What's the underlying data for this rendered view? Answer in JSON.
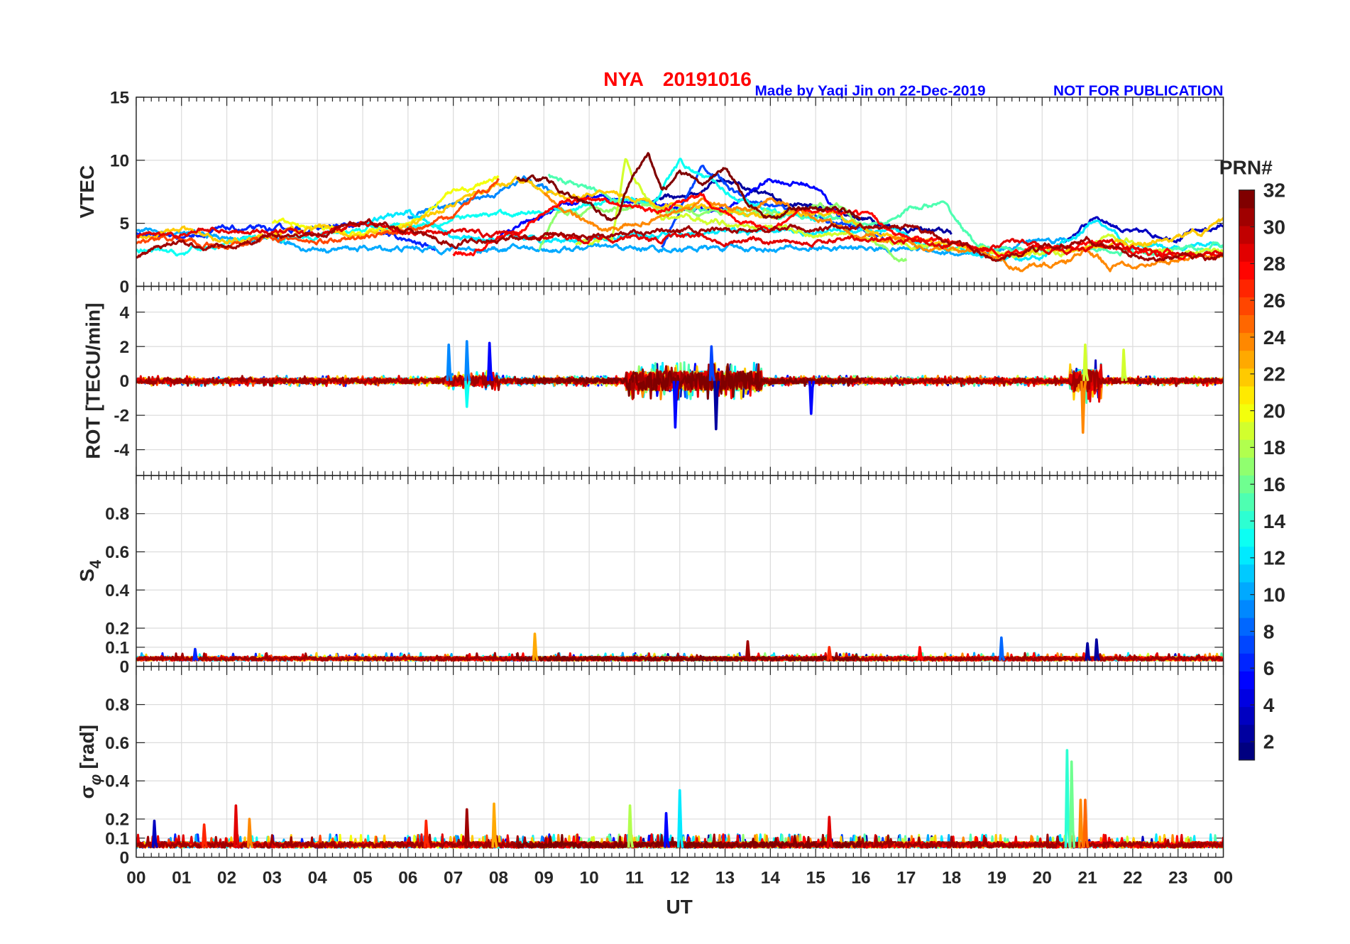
{
  "chart_data": {
    "type": "line",
    "title": {
      "station": "NYA",
      "date": "20191016"
    },
    "credit": "Made by Yaqi Jin on 22-Dec-2019",
    "notice": "NOT FOR PUBLICATION",
    "xlabel": "UT",
    "xlim": [
      0,
      24
    ],
    "xticks": [
      "00",
      "01",
      "02",
      "03",
      "04",
      "05",
      "06",
      "07",
      "08",
      "09",
      "10",
      "11",
      "12",
      "13",
      "14",
      "15",
      "16",
      "17",
      "18",
      "19",
      "20",
      "21",
      "22",
      "23",
      "00"
    ],
    "colorbar": {
      "label": "PRN#",
      "range": [
        1,
        32
      ],
      "ticks": [
        "2",
        "4",
        "6",
        "8",
        "10",
        "12",
        "14",
        "16",
        "18",
        "20",
        "22",
        "24",
        "26",
        "28",
        "30",
        "32"
      ],
      "colormap": "jet"
    },
    "panels": [
      {
        "id": "vtec",
        "ylabel": "VTEC",
        "ylim": [
          0,
          15
        ],
        "yticks": [
          0,
          5,
          10,
          15
        ],
        "yticklabels": [
          "0",
          "5",
          "10",
          "15"
        ]
      },
      {
        "id": "rot",
        "ylabel": "ROT [TECU/min]",
        "ylim": [
          -5.5,
          5.5
        ],
        "yticks": [
          -4,
          -2,
          0,
          2,
          4
        ],
        "yticklabels": [
          "-4",
          "-2",
          "0",
          "2",
          "4"
        ]
      },
      {
        "id": "s4",
        "ylabel": "S",
        "ylabel_sub": "4",
        "ylim": [
          0,
          1
        ],
        "yticks": [
          0,
          0.1,
          0.2,
          0.4,
          0.6,
          0.8
        ],
        "yticklabels": [
          "0",
          "0.1",
          "0.2",
          "0.4",
          "0.6",
          "0.8"
        ]
      },
      {
        "id": "sigma",
        "ylabel": "σ",
        "ylabel_sub": "φ",
        "ylabel_unit": "[rad]",
        "ylim": [
          0,
          1
        ],
        "yticks": [
          0,
          0.1,
          0.2,
          0.4,
          0.6,
          0.8
        ],
        "yticklabels": [
          "0",
          "0.1",
          "0.2",
          "0.4",
          "0.6",
          "0.8"
        ]
      }
    ],
    "vtec_tracks": [
      {
        "prn": 2,
        "t": [
          11.0,
          12.0,
          13.0,
          14.0,
          15.0,
          16.0,
          17.0,
          18.0
        ],
        "v": [
          6.8,
          7.0,
          8.6,
          7.0,
          6.2,
          5.5,
          4.6,
          4.2
        ]
      },
      {
        "prn": 3,
        "t": [
          20.5,
          21.2,
          22.0,
          23.0,
          24.0
        ],
        "v": [
          3.5,
          5.6,
          4.2,
          4.0,
          4.8
        ]
      },
      {
        "prn": 5,
        "t": [
          8.0,
          9.0,
          10.0,
          11.0,
          12.0,
          13.0,
          14.0,
          15.0,
          15.8
        ],
        "v": [
          4.0,
          5.5,
          7.0,
          7.0,
          6.2,
          6.0,
          8.5,
          8.0,
          4.5
        ]
      },
      {
        "prn": 6,
        "t": [
          0,
          1,
          2,
          3,
          4,
          5,
          6,
          6.6
        ],
        "v": [
          4.2,
          4.0,
          4.5,
          4.4,
          4.6,
          4.8,
          3.5,
          3.0
        ]
      },
      {
        "prn": 7,
        "t": [
          11.6,
          12.0,
          12.5,
          13.5,
          15.0,
          16.0,
          16.5
        ],
        "v": [
          3.2,
          6.0,
          9.5,
          7.0,
          5.5,
          4.5,
          3.8
        ]
      },
      {
        "prn": 9,
        "t": [
          6.0,
          7.0,
          8.0,
          8.6,
          9.2
        ],
        "v": [
          5.5,
          6.5,
          7.5,
          8.5,
          7.5
        ]
      },
      {
        "prn": 10,
        "t": [
          0,
          1,
          2,
          3,
          3.8,
          17.5,
          18.5,
          19.5,
          20.5
        ],
        "v": [
          4.6,
          4.2,
          3.8,
          3.5,
          3.0,
          3.0,
          2.2,
          3.5,
          3.8
        ]
      },
      {
        "prn": 12,
        "t": [
          5.0,
          6.0,
          7.0,
          7.5,
          16.0,
          17.0,
          18.0,
          19.0,
          20.0,
          21.2,
          22.0,
          24.0
        ],
        "v": [
          5.0,
          5.8,
          4.0,
          3.6,
          4.5,
          4.0,
          2.8,
          2.2,
          2.3,
          5.2,
          3.0,
          3.2
        ]
      },
      {
        "prn": 13,
        "t": [
          0,
          1,
          2,
          3,
          11.5,
          12.0,
          13.0,
          14.0,
          15.0
        ],
        "v": [
          2.8,
          2.5,
          3.5,
          3.8,
          7.0,
          9.8,
          7.5,
          6.0,
          5.2
        ]
      },
      {
        "prn": 15,
        "t": [
          9.1,
          9.8,
          10.5,
          11.0,
          16.5,
          17.0,
          17.8,
          18.5,
          19.0,
          21.0,
          22.5,
          24.0
        ],
        "v": [
          8.8,
          8.0,
          7.0,
          6.5,
          5.0,
          6.2,
          6.5,
          3.5,
          2.8,
          3.0,
          2.6,
          3.5
        ]
      },
      {
        "prn": 17,
        "t": [
          8.9,
          9.3,
          10.0,
          11.0,
          12.0,
          14.5,
          15.5,
          16.5,
          17.0
        ],
        "v": [
          2.8,
          5.8,
          6.0,
          6.3,
          5.8,
          6.0,
          6.5,
          3.0,
          2.1
        ]
      },
      {
        "prn": 19,
        "t": [
          9.7,
          10.5,
          10.8,
          11.2,
          11.6,
          12.0,
          18.0,
          19.5,
          20.5,
          21.5,
          23.0,
          24.0
        ],
        "v": [
          3.3,
          3.4,
          9.8,
          7.5,
          5.4,
          5.5,
          3.0,
          2.6,
          2.8,
          4.0,
          2.5,
          2.8
        ]
      },
      {
        "prn": 20,
        "t": [
          3.0,
          4.0,
          5.0,
          6.0,
          7.0,
          8.0
        ],
        "v": [
          5.0,
          4.8,
          4.2,
          5.0,
          7.5,
          8.5
        ]
      },
      {
        "prn": 22,
        "t": [
          0,
          1,
          2,
          3,
          4,
          5,
          6,
          7,
          8.5,
          9.5,
          10.5,
          11.5,
          12.5,
          13.5,
          14.5,
          15.5,
          16.5,
          18,
          19,
          20,
          21,
          22,
          23,
          24
        ],
        "v": [
          3.8,
          4.5,
          3.5,
          4.2,
          4.5,
          4.0,
          5.0,
          6.5,
          8.5,
          7.0,
          7.8,
          6.5,
          6.2,
          5.5,
          6.0,
          5.5,
          4.2,
          3.2,
          2.5,
          2.8,
          3.0,
          3.2,
          3.8,
          5.0
        ]
      },
      {
        "prn": 24,
        "t": [
          9.0,
          9.5,
          10.0,
          10.3,
          12.5,
          13.5,
          14.0,
          15.0,
          16.0,
          19.0,
          19.5,
          20.5,
          21.0,
          21.5,
          22.5,
          24.0
        ],
        "v": [
          7.5,
          6.0,
          5.0,
          4.2,
          6.5,
          6.0,
          7.0,
          5.5,
          4.0,
          2.4,
          1.6,
          1.7,
          2.8,
          1.7,
          2.0,
          2.6
        ]
      },
      {
        "prn": 26,
        "t": [
          0,
          1,
          2,
          3,
          4,
          5,
          6,
          7,
          8
        ],
        "v": [
          3.5,
          3.8,
          3.0,
          3.8,
          3.5,
          3.8,
          4.5,
          5.5,
          8.5
        ]
      },
      {
        "prn": 28,
        "t": [
          7.0,
          7.5,
          8.5,
          9.5,
          10.5,
          11.5,
          12.5,
          13.5,
          14.0,
          15.0,
          16.0,
          17.0,
          18.0,
          19.0,
          20.0,
          21.0,
          22.0,
          24.0
        ],
        "v": [
          2.6,
          3.0,
          4.5,
          7.0,
          6.5,
          6.0,
          7.0,
          5.0,
          4.2,
          6.2,
          5.5,
          4.0,
          3.5,
          2.6,
          3.0,
          3.5,
          2.6,
          2.5
        ]
      },
      {
        "prn": 29,
        "t": [
          0,
          1,
          2,
          3,
          4,
          5,
          6,
          7,
          8,
          17.5,
          18.5,
          19.5,
          20.5,
          21.5,
          22.5,
          24
        ],
        "v": [
          4.0,
          4.2,
          4.6,
          4.4,
          4.0,
          5.0,
          4.2,
          4.5,
          4.0,
          3.5,
          3.4,
          3.5,
          2.8,
          3.5,
          2.5,
          2.6
        ]
      },
      {
        "prn": 31,
        "t": [
          0,
          1,
          2,
          3,
          4,
          5,
          6,
          7,
          8,
          17,
          18,
          19,
          20,
          21,
          22,
          23,
          24
        ],
        "v": [
          2.4,
          3.5,
          3.0,
          4.0,
          4.2,
          5.2,
          4.5,
          3.5,
          3.8,
          4.8,
          3.5,
          2.2,
          3.0,
          3.8,
          2.5,
          2.2,
          2.1
        ]
      },
      {
        "prn": 32,
        "t": [
          8.4,
          9.0,
          9.5,
          10.0,
          10.6,
          11.0,
          11.3,
          11.6,
          12.0,
          12.5,
          13.0,
          13.5,
          14.0,
          15.0,
          16.0
        ],
        "v": [
          8.5,
          8.5,
          7.2,
          6.6,
          5.3,
          9.0,
          10.4,
          7.5,
          9.0,
          8.0,
          9.4,
          6.5,
          5.5,
          6.5,
          5.5
        ]
      }
    ],
    "rot_active_windows": [
      {
        "start": 10.8,
        "end": 13.8,
        "amp": 1.1
      },
      {
        "start": 20.6,
        "end": 21.3,
        "amp": 1.3
      },
      {
        "start": 6.8,
        "end": 8.0,
        "amp": 0.6
      }
    ],
    "rot_spikes": [
      {
        "t": 6.9,
        "v": 2.1,
        "prn": 9
      },
      {
        "t": 7.3,
        "v": 2.3,
        "prn": 9
      },
      {
        "t": 7.8,
        "v": 2.2,
        "prn": 5
      },
      {
        "t": 7.3,
        "v": -1.5,
        "prn": 13
      },
      {
        "t": 11.9,
        "v": -2.7,
        "prn": 5
      },
      {
        "t": 12.7,
        "v": 2.0,
        "prn": 7
      },
      {
        "t": 12.8,
        "v": -2.8,
        "prn": 2
      },
      {
        "t": 14.9,
        "v": -1.9,
        "prn": 5
      },
      {
        "t": 20.9,
        "v": -3.0,
        "prn": 24
      },
      {
        "t": 20.95,
        "v": 2.1,
        "prn": 19
      },
      {
        "t": 21.8,
        "v": 1.8,
        "prn": 19
      }
    ],
    "s4_spikes": [
      {
        "t": 1.3,
        "v": 0.09,
        "prn": 6
      },
      {
        "t": 8.8,
        "v": 0.17,
        "prn": 23
      },
      {
        "t": 13.5,
        "v": 0.13,
        "prn": 31
      },
      {
        "t": 15.3,
        "v": 0.1,
        "prn": 27
      },
      {
        "t": 17.3,
        "v": 0.1,
        "prn": 28
      },
      {
        "t": 19.1,
        "v": 0.15,
        "prn": 8
      },
      {
        "t": 21.0,
        "v": 0.12,
        "prn": 2
      },
      {
        "t": 21.2,
        "v": 0.14,
        "prn": 2
      }
    ],
    "sigma_spikes": [
      {
        "t": 0.4,
        "v": 0.19,
        "prn": 3
      },
      {
        "t": 1.5,
        "v": 0.17,
        "prn": 27
      },
      {
        "t": 2.2,
        "v": 0.27,
        "prn": 29
      },
      {
        "t": 2.5,
        "v": 0.2,
        "prn": 24
      },
      {
        "t": 6.4,
        "v": 0.19,
        "prn": 27
      },
      {
        "t": 7.3,
        "v": 0.25,
        "prn": 31
      },
      {
        "t": 7.9,
        "v": 0.28,
        "prn": 23
      },
      {
        "t": 10.9,
        "v": 0.27,
        "prn": 18
      },
      {
        "t": 11.7,
        "v": 0.23,
        "prn": 5
      },
      {
        "t": 12.0,
        "v": 0.35,
        "prn": 12
      },
      {
        "t": 15.3,
        "v": 0.21,
        "prn": 29
      },
      {
        "t": 20.55,
        "v": 0.56,
        "prn": 14
      },
      {
        "t": 20.65,
        "v": 0.5,
        "prn": 16
      },
      {
        "t": 20.85,
        "v": 0.3,
        "prn": 24
      },
      {
        "t": 20.95,
        "v": 0.3,
        "prn": 25
      }
    ],
    "rot_noise_base": 0.3,
    "s4_base": 0.03,
    "sigma_base": 0.05
  }
}
